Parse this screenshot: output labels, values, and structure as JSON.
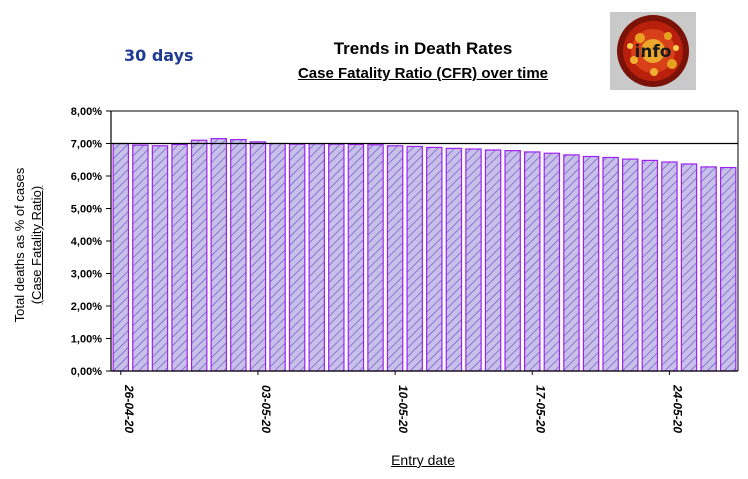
{
  "header": {
    "period_label": "30 days",
    "title": "Trends in Death Rates",
    "subtitle": "Case Fatality Ratio (CFR) over time",
    "logo_text": "info"
  },
  "colors": {
    "bar_border": "#a020f0",
    "bar_hatch": "#6a5acd",
    "bar_fill": "#c8c0e8",
    "reference_line": "#000000"
  },
  "chart_data": {
    "type": "bar",
    "title": "Trends in Death Rates",
    "subtitle": "Case Fatality Ratio (CFR) over time",
    "xlabel": "Entry date",
    "ylabel": "Total deaths as % of cases",
    "ylabel_sub": "(Case Fatality Ratio)",
    "ylim": [
      0,
      8
    ],
    "yticks": [
      "0,00%",
      "1,00%",
      "2,00%",
      "3,00%",
      "4,00%",
      "5,00%",
      "6,00%",
      "7,00%",
      "8,00%"
    ],
    "x_tick_labels": [
      {
        "index": 0,
        "label": "26-04-20"
      },
      {
        "index": 7,
        "label": "03-05-20"
      },
      {
        "index": 14,
        "label": "10-05-20"
      },
      {
        "index": 21,
        "label": "17-05-20"
      },
      {
        "index": 28,
        "label": "24-05-20"
      }
    ],
    "reference_line_value": 7.0,
    "grid": false,
    "values": [
      7.0,
      6.95,
      6.93,
      6.97,
      7.1,
      7.15,
      7.12,
      7.05,
      7.0,
      6.98,
      6.99,
      6.98,
      6.97,
      6.96,
      6.93,
      6.91,
      6.88,
      6.85,
      6.83,
      6.8,
      6.78,
      6.74,
      6.7,
      6.65,
      6.6,
      6.57,
      6.52,
      6.48,
      6.43,
      6.37,
      6.28,
      6.26
    ]
  }
}
